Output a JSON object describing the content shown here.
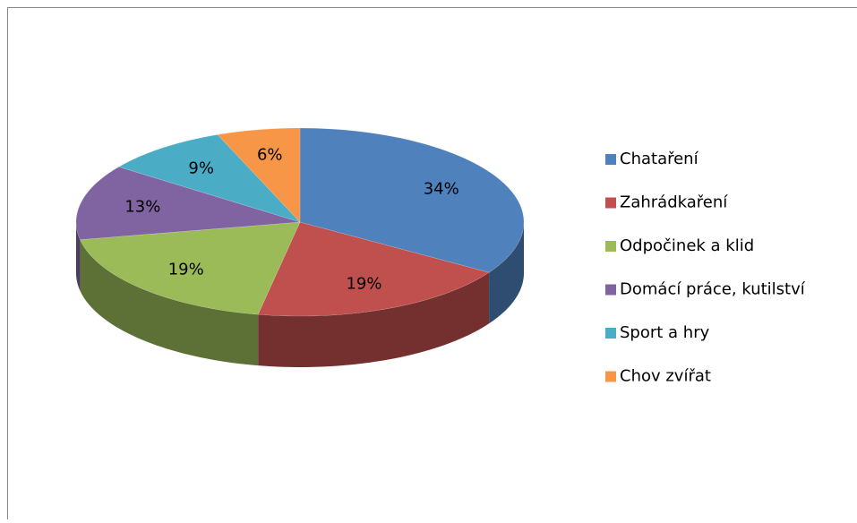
{
  "chart_data": {
    "type": "pie3d",
    "categories": [
      "Chataření",
      "Zahrádkaření",
      "Odpočinek a klid",
      "Domácí práce, kutilství",
      "Sport a hry",
      "Chov zvířat"
    ],
    "values": [
      34,
      19,
      19,
      13,
      9,
      6
    ],
    "value_labels": [
      "34%",
      "19%",
      "19%",
      "13%",
      "9%",
      "6%"
    ],
    "colors": [
      "#4F81BD",
      "#C0504D",
      "#9BBB59",
      "#8064A2",
      "#4BACC6",
      "#F79646"
    ],
    "legend": "right"
  }
}
